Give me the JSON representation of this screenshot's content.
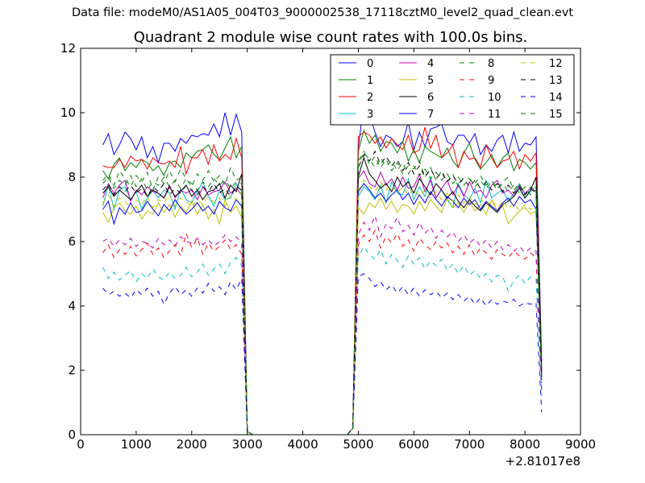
{
  "header": {
    "text": "Data file: modeM0/AS1A05_004T03_9000002538_17118cztM0_level2_quad_clean.evt"
  },
  "chart_data": {
    "type": "line",
    "title": "Quadrant 2 module wise count rates with 100.0s bins.",
    "xlabel": "",
    "ylabel": "",
    "xlim": [
      0,
      9000
    ],
    "ylim": [
      0,
      12
    ],
    "x_offset_label": "+2.81017e8",
    "xticks": [
      "0",
      "1000",
      "2000",
      "3000",
      "4000",
      "5000",
      "6000",
      "7000",
      "8000",
      "9000"
    ],
    "yticks": [
      "0",
      "2",
      "4",
      "6",
      "8",
      "10",
      "12"
    ],
    "grid": false,
    "legend_position": "top-right",
    "x": [
      400,
      500,
      600,
      700,
      800,
      900,
      1000,
      1100,
      1200,
      1300,
      1400,
      1500,
      1600,
      1700,
      1800,
      1900,
      2000,
      2100,
      2200,
      2300,
      2400,
      2500,
      2600,
      2700,
      2800,
      2900,
      3000,
      3100,
      3200,
      4800,
      4900,
      5000,
      5100,
      5200,
      5300,
      5400,
      5500,
      5600,
      5700,
      5800,
      5900,
      6000,
      6100,
      6200,
      6300,
      6400,
      6500,
      6600,
      6700,
      6800,
      6900,
      7000,
      7100,
      7200,
      7300,
      7400,
      7500,
      7600,
      7700,
      7800,
      7900,
      8000,
      8100,
      8200,
      8300
    ],
    "series": [
      {
        "name": "0",
        "color": "#0000ff",
        "dash": "solid",
        "values": [
          9.0,
          9.35,
          8.7,
          9.0,
          9.4,
          9.2,
          8.85,
          9.25,
          8.6,
          8.95,
          8.45,
          9.05,
          9.05,
          8.8,
          9.2,
          9.05,
          9.3,
          9.25,
          9.35,
          9.3,
          9.65,
          9.25,
          10.0,
          9.3,
          9.95,
          9.4,
          0.1,
          0,
          0,
          0,
          0.2,
          8.9,
          10.3,
          9.95,
          9.4,
          8.95,
          9.3,
          9.2,
          8.95,
          9.1,
          9.7,
          8.85,
          9.4,
          8.95,
          9.5,
          9.55,
          9.65,
          9.1,
          9.0,
          9.3,
          9.3,
          9.05,
          9.35,
          8.7,
          9.0,
          8.8,
          9.15,
          9.3,
          8.75,
          9.4,
          8.8,
          9.05,
          9.0,
          9.25,
          2.3
        ]
      },
      {
        "name": "1",
        "color": "#008000",
        "dash": "solid",
        "values": [
          8.2,
          7.95,
          8.4,
          8.6,
          8.2,
          8.45,
          8.3,
          8.55,
          8.45,
          8.2,
          8.35,
          8.05,
          8.45,
          8.5,
          8.3,
          8.75,
          8.6,
          8.8,
          8.85,
          9.0,
          8.7,
          8.55,
          8.9,
          9.25,
          8.6,
          8.95,
          0.1,
          0,
          0,
          0,
          0.2,
          8.8,
          9.45,
          9.05,
          9.3,
          8.8,
          9.1,
          9.05,
          8.75,
          9.1,
          8.5,
          8.85,
          8.45,
          8.95,
          8.8,
          8.7,
          8.6,
          8.9,
          8.5,
          8.3,
          8.75,
          9.05,
          8.55,
          8.25,
          8.45,
          8.7,
          8.3,
          8.6,
          8.75,
          8.2,
          8.55,
          8.45,
          8.25,
          8.45,
          2.1
        ]
      },
      {
        "name": "2",
        "color": "#ff0000",
        "dash": "solid",
        "values": [
          8.35,
          8.3,
          8.3,
          8.55,
          8.3,
          8.65,
          8.5,
          8.55,
          8.25,
          8.6,
          8.45,
          8.4,
          8.5,
          8.3,
          8.95,
          8.1,
          8.6,
          8.6,
          8.85,
          8.4,
          9.0,
          8.5,
          8.7,
          8.55,
          9.2,
          8.6,
          0.1,
          0,
          0,
          0,
          0.2,
          9.25,
          9.4,
          9.3,
          9.05,
          9.25,
          8.9,
          9.2,
          9.0,
          8.85,
          9.3,
          8.75,
          8.85,
          9.55,
          8.9,
          9.3,
          8.6,
          8.75,
          9.0,
          8.3,
          8.8,
          8.55,
          8.6,
          8.3,
          9.0,
          8.6,
          8.3,
          8.5,
          8.55,
          8.8,
          8.25,
          8.7,
          8.5,
          8.75,
          1.9
        ]
      },
      {
        "name": "3",
        "color": "#00bfbf",
        "dash": "solid",
        "values": [
          7.1,
          7.75,
          7.0,
          7.6,
          7.7,
          7.3,
          7.55,
          7.0,
          7.35,
          7.6,
          7.35,
          7.6,
          7.5,
          7.0,
          7.65,
          7.3,
          7.2,
          7.55,
          7.85,
          7.4,
          7.1,
          7.6,
          7.3,
          7.35,
          7.8,
          7.55,
          0.1,
          0,
          0,
          0,
          0.2,
          7.4,
          7.7,
          7.55,
          7.3,
          7.75,
          7.2,
          7.85,
          7.5,
          7.45,
          7.95,
          7.3,
          7.7,
          7.4,
          8.0,
          7.35,
          7.6,
          7.3,
          7.05,
          7.8,
          7.45,
          7.3,
          7.65,
          7.2,
          7.9,
          7.35,
          7.5,
          7.6,
          7.25,
          7.5,
          7.8,
          7.35,
          7.55,
          7.7,
          1.9
        ]
      },
      {
        "name": "4",
        "color": "#bf00bf",
        "dash": "solid",
        "values": [
          7.35,
          7.8,
          7.5,
          7.75,
          7.9,
          7.25,
          7.6,
          7.45,
          7.7,
          7.55,
          7.5,
          7.35,
          7.75,
          7.35,
          7.6,
          7.5,
          7.6,
          7.3,
          7.7,
          7.45,
          7.55,
          7.6,
          7.85,
          7.5,
          7.65,
          7.45,
          0.1,
          0,
          0,
          0,
          0.2,
          7.95,
          8.2,
          7.8,
          7.7,
          8.15,
          7.75,
          7.95,
          7.6,
          8.0,
          7.65,
          7.7,
          8.1,
          7.55,
          7.9,
          7.35,
          7.65,
          7.9,
          7.45,
          7.75,
          7.4,
          7.85,
          7.5,
          7.6,
          7.35,
          7.75,
          7.9,
          7.5,
          7.6,
          7.4,
          7.75,
          7.5,
          7.65,
          7.55,
          1.8
        ]
      },
      {
        "name": "5",
        "color": "#bfbf00",
        "dash": "solid",
        "values": [
          6.9,
          6.6,
          7.05,
          7.2,
          6.95,
          6.85,
          7.1,
          6.7,
          6.95,
          6.85,
          7.2,
          6.9,
          7.15,
          6.75,
          7.1,
          6.9,
          7.25,
          6.85,
          7.15,
          6.7,
          7.0,
          6.55,
          7.3,
          6.9,
          7.1,
          6.75,
          0.1,
          0,
          0,
          0,
          0.2,
          7.05,
          6.85,
          7.2,
          7.05,
          7.35,
          7.0,
          7.25,
          6.9,
          7.15,
          7.1,
          6.85,
          7.25,
          6.95,
          7.3,
          7.1,
          6.9,
          7.35,
          7.05,
          7.2,
          6.9,
          7.25,
          6.95,
          7.15,
          6.85,
          7.3,
          6.95,
          7.1,
          6.55,
          6.75,
          6.95,
          7.05,
          6.85,
          6.95,
          1.7
        ]
      },
      {
        "name": "6",
        "color": "#000000",
        "dash": "solid",
        "values": [
          7.5,
          7.7,
          7.4,
          7.6,
          7.45,
          7.3,
          7.55,
          7.75,
          7.4,
          7.6,
          7.5,
          7.35,
          7.7,
          7.4,
          7.55,
          7.75,
          7.4,
          7.6,
          7.3,
          7.55,
          7.6,
          7.8,
          7.35,
          7.75,
          7.55,
          8.1,
          0.1,
          0,
          0,
          0,
          0.2,
          8.0,
          8.6,
          8.1,
          7.9,
          7.65,
          7.8,
          7.55,
          8.0,
          7.7,
          7.85,
          7.5,
          7.95,
          7.7,
          7.45,
          7.8,
          7.6,
          7.35,
          7.55,
          7.25,
          7.05,
          7.3,
          7.1,
          6.95,
          7.2,
          7.05,
          6.9,
          7.15,
          7.25,
          7.4,
          7.65,
          7.35,
          7.6,
          8.0,
          2.0
        ]
      },
      {
        "name": "7",
        "color": "#0000ff",
        "dash": "solid",
        "values": [
          7.0,
          7.25,
          6.55,
          7.05,
          6.85,
          7.2,
          6.9,
          6.95,
          7.25,
          7.0,
          6.8,
          7.15,
          6.95,
          7.3,
          7.05,
          6.85,
          7.0,
          7.2,
          6.95,
          7.1,
          6.85,
          7.25,
          7.05,
          6.95,
          7.3,
          7.1,
          0.1,
          0,
          0,
          0,
          0.2,
          7.55,
          7.8,
          7.6,
          7.35,
          7.5,
          7.25,
          7.45,
          7.6,
          7.3,
          7.5,
          7.15,
          7.45,
          7.2,
          7.55,
          7.3,
          7.1,
          7.4,
          7.25,
          7.05,
          7.35,
          7.15,
          7.3,
          7.0,
          7.25,
          7.1,
          6.95,
          7.2,
          7.35,
          7.1,
          7.4,
          7.2,
          7.3,
          7.0,
          1.8
        ]
      },
      {
        "name": "8",
        "color": "#008000",
        "dash": "dashed",
        "values": [
          7.9,
          8.1,
          7.75,
          8.2,
          7.95,
          7.7,
          8.05,
          7.85,
          8.15,
          7.6,
          8.0,
          7.8,
          8.2,
          7.85,
          8.25,
          7.95,
          7.7,
          8.1,
          7.9,
          8.2,
          7.85,
          8.05,
          7.75,
          8.3,
          7.9,
          8.0,
          0.1,
          0,
          0,
          0,
          0.2,
          8.5,
          8.8,
          8.4,
          8.65,
          8.3,
          8.55,
          8.2,
          8.45,
          8.1,
          8.35,
          8.25,
          8.5,
          8.0,
          8.3,
          7.9,
          8.2,
          7.85,
          8.1,
          7.7,
          8.0,
          7.95,
          7.8,
          8.05,
          7.75,
          7.9,
          7.65,
          7.85,
          8.0,
          7.6,
          7.8,
          7.45,
          7.7,
          7.55,
          1.6
        ]
      },
      {
        "name": "9",
        "color": "#ff0000",
        "dash": "dashed",
        "values": [
          5.65,
          5.9,
          5.5,
          5.75,
          5.6,
          5.85,
          5.55,
          5.75,
          5.95,
          5.6,
          5.8,
          5.5,
          5.7,
          5.9,
          5.55,
          6.25,
          5.8,
          6.1,
          5.6,
          5.95,
          5.7,
          5.85,
          6.05,
          5.75,
          5.9,
          5.6,
          0.1,
          0,
          0,
          0,
          0.2,
          5.9,
          6.2,
          6.0,
          6.35,
          5.8,
          6.15,
          5.95,
          6.25,
          5.85,
          6.05,
          5.7,
          6.1,
          5.9,
          5.75,
          6.0,
          5.8,
          5.95,
          5.65,
          5.85,
          5.6,
          5.9,
          5.55,
          5.8,
          5.65,
          5.45,
          5.75,
          5.6,
          5.5,
          5.7,
          5.55,
          5.45,
          5.65,
          5.5,
          1.3
        ]
      },
      {
        "name": "10",
        "color": "#00bfbf",
        "dash": "dashed",
        "values": [
          5.2,
          4.85,
          5.05,
          4.8,
          4.95,
          5.1,
          4.75,
          5.0,
          4.85,
          5.15,
          4.9,
          4.8,
          5.05,
          4.85,
          4.95,
          5.2,
          4.9,
          5.05,
          5.3,
          4.95,
          5.15,
          5.3,
          5.0,
          5.35,
          5.5,
          5.25,
          0.1,
          0,
          0,
          0,
          0.2,
          5.5,
          5.85,
          5.6,
          5.45,
          5.75,
          5.3,
          5.6,
          5.4,
          5.2,
          5.55,
          5.3,
          5.5,
          5.15,
          5.4,
          5.25,
          5.45,
          5.1,
          5.3,
          5.0,
          5.25,
          4.95,
          5.1,
          4.85,
          5.0,
          4.75,
          4.95,
          4.9,
          4.45,
          4.8,
          4.95,
          4.7,
          4.9,
          4.85,
          1.2
        ]
      },
      {
        "name": "11",
        "color": "#bf00bf",
        "dash": "dashed",
        "values": [
          6.0,
          6.1,
          5.85,
          6.05,
          5.9,
          6.1,
          5.85,
          6.0,
          5.95,
          5.8,
          6.1,
          5.9,
          6.05,
          5.85,
          6.15,
          6.0,
          5.95,
          6.1,
          5.9,
          6.05,
          5.85,
          6.0,
          6.2,
          6.0,
          6.15,
          5.95,
          0.1,
          0,
          0,
          0,
          0.2,
          6.2,
          6.6,
          6.35,
          6.8,
          6.15,
          6.55,
          6.4,
          6.75,
          6.3,
          6.5,
          6.2,
          6.6,
          6.25,
          6.45,
          6.1,
          6.35,
          6.15,
          6.3,
          6.0,
          6.2,
          5.95,
          6.1,
          5.85,
          6.05,
          5.8,
          6.0,
          5.75,
          5.9,
          5.7,
          5.85,
          5.65,
          5.8,
          5.7,
          1.4
        ]
      },
      {
        "name": "12",
        "color": "#bfbf00",
        "dash": "dashed",
        "values": [
          7.2,
          7.45,
          7.1,
          7.35,
          7.25,
          7.0,
          7.3,
          7.15,
          7.4,
          7.05,
          7.3,
          7.2,
          7.45,
          7.1,
          7.35,
          7.25,
          7.05,
          7.3,
          7.15,
          7.4,
          7.2,
          7.35,
          7.1,
          7.45,
          7.3,
          7.55,
          0.1,
          0,
          0,
          0,
          0.2,
          7.6,
          7.9,
          7.7,
          7.55,
          7.85,
          7.6,
          7.75,
          7.5,
          7.7,
          7.45,
          7.65,
          7.4,
          7.6,
          7.35,
          7.55,
          7.3,
          7.5,
          7.25,
          7.45,
          7.2,
          7.4,
          7.15,
          7.35,
          7.1,
          7.3,
          7.05,
          7.25,
          7.0,
          7.2,
          6.95,
          7.15,
          7.0,
          7.1,
          1.7
        ]
      },
      {
        "name": "13",
        "color": "#000000",
        "dash": "dashed",
        "values": [
          7.6,
          7.8,
          7.45,
          7.7,
          7.55,
          7.75,
          7.5,
          7.65,
          7.4,
          7.7,
          7.55,
          7.8,
          7.45,
          7.65,
          7.5,
          7.75,
          7.6,
          7.45,
          7.7,
          7.55,
          7.8,
          7.5,
          7.65,
          7.4,
          7.7,
          7.6,
          0.1,
          0,
          0,
          0,
          0.2,
          8.3,
          8.7,
          8.5,
          8.8,
          8.4,
          8.65,
          8.35,
          8.55,
          8.2,
          8.45,
          8.1,
          8.35,
          8.0,
          8.25,
          7.95,
          8.15,
          7.85,
          8.05,
          7.8,
          7.95,
          7.7,
          7.9,
          7.65,
          7.85,
          7.6,
          7.8,
          7.55,
          7.75,
          7.5,
          7.7,
          7.45,
          7.65,
          7.5,
          1.8
        ]
      },
      {
        "name": "14",
        "color": "#0000ff",
        "dash": "dashed",
        "values": [
          4.55,
          4.35,
          4.45,
          4.3,
          4.4,
          4.25,
          4.5,
          4.35,
          4.55,
          4.3,
          4.45,
          4.05,
          4.4,
          4.6,
          4.35,
          4.5,
          4.3,
          4.55,
          4.4,
          4.7,
          4.45,
          4.6,
          4.35,
          4.75,
          4.5,
          4.85,
          0.1,
          0,
          0,
          0,
          0.2,
          4.9,
          5.0,
          4.85,
          4.6,
          4.75,
          4.5,
          4.65,
          4.4,
          4.6,
          4.35,
          4.55,
          4.3,
          4.5,
          4.35,
          4.45,
          4.25,
          4.4,
          4.2,
          4.35,
          4.15,
          4.3,
          4.05,
          4.25,
          4.0,
          4.2,
          4.05,
          4.15,
          4.1,
          4.2,
          4.0,
          4.1,
          4.05,
          4.1,
          0.7
        ]
      },
      {
        "name": "15",
        "color": "#008000",
        "dash": "dashed",
        "values": [
          7.8,
          8.0,
          7.65,
          7.9,
          7.75,
          8.05,
          7.7,
          7.95,
          7.6,
          7.85,
          7.75,
          8.0,
          7.7,
          7.9,
          7.65,
          7.95,
          7.8,
          7.6,
          7.85,
          7.7,
          7.95,
          7.75,
          7.9,
          7.65,
          7.85,
          7.8,
          0.1,
          0,
          0,
          0,
          0.2,
          8.4,
          8.75,
          8.55,
          8.3,
          8.6,
          8.35,
          8.5,
          8.2,
          8.45,
          8.1,
          8.35,
          8.05,
          8.25,
          7.95,
          8.15,
          7.9,
          8.1,
          7.8,
          8.0,
          7.75,
          7.95,
          7.7,
          7.9,
          7.65,
          7.85,
          7.6,
          7.8,
          7.55,
          7.75,
          7.5,
          7.7,
          7.45,
          7.6,
          1.6
        ]
      }
    ]
  }
}
